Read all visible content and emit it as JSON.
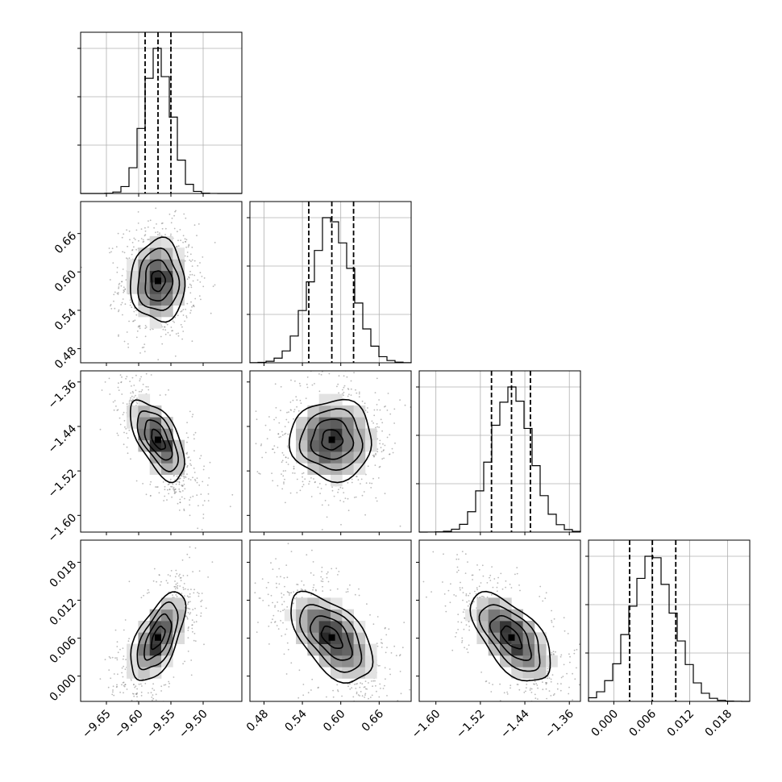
{
  "chart_data": {
    "type": "corner",
    "n_params": 4,
    "parameters": [
      {
        "index": 0,
        "range": [
          -9.69,
          -9.44
        ],
        "ticks": [
          -9.65,
          -9.6,
          -9.55,
          -9.5
        ],
        "tick_labels": [
          "−9.65",
          "−9.60",
          "−9.55",
          "−9.50"
        ],
        "mean": -9.57,
        "sigma": 0.021,
        "quantiles": [
          -9.59,
          -9.57,
          -9.55
        ]
      },
      {
        "index": 1,
        "range": [
          0.458,
          0.71
        ],
        "ticks": [
          0.48,
          0.54,
          0.6,
          0.66
        ],
        "tick_labels": [
          "0.48",
          "0.54",
          "0.60",
          "0.66"
        ],
        "mean": 0.586,
        "sigma": 0.032,
        "quantiles": [
          0.55,
          0.586,
          0.62
        ]
      },
      {
        "index": 2,
        "range": [
          -1.63,
          -1.34
        ],
        "ticks": [
          -1.6,
          -1.52,
          -1.44,
          -1.36
        ],
        "tick_labels": [
          "−1.60",
          "−1.52",
          "−1.44",
          "−1.36"
        ],
        "mean": -1.464,
        "sigma": 0.036,
        "quantiles": [
          -1.5,
          -1.464,
          -1.43
        ]
      },
      {
        "index": 3,
        "range": [
          -0.004,
          0.0215
        ],
        "ticks": [
          0.0,
          0.006,
          0.012,
          0.018
        ],
        "tick_labels": [
          "0.000",
          "0.006",
          "0.012",
          "0.018"
        ],
        "mean": 0.0061,
        "sigma": 0.0035,
        "quantiles": [
          0.0025,
          0.0061,
          0.0098
        ]
      }
    ],
    "correlations": [
      {
        "pair": [
          0,
          1
        ],
        "rho": 0.0
      },
      {
        "pair": [
          0,
          2
        ],
        "rho": -0.6
      },
      {
        "pair": [
          1,
          2
        ],
        "rho": 0.0
      },
      {
        "pair": [
          0,
          3
        ],
        "rho": 0.6
      },
      {
        "pair": [
          1,
          3
        ],
        "rho": -0.55
      },
      {
        "pair": [
          2,
          3
        ],
        "rho": -0.6
      }
    ],
    "histogram_bins": 20,
    "contour_levels_sigma": [
      0.5,
      1.0,
      1.5,
      2.0
    ],
    "grid": true,
    "colors": {
      "ink": "#000000",
      "grid": "#b0b0b0",
      "scatter": "#7f7f7f"
    }
  }
}
